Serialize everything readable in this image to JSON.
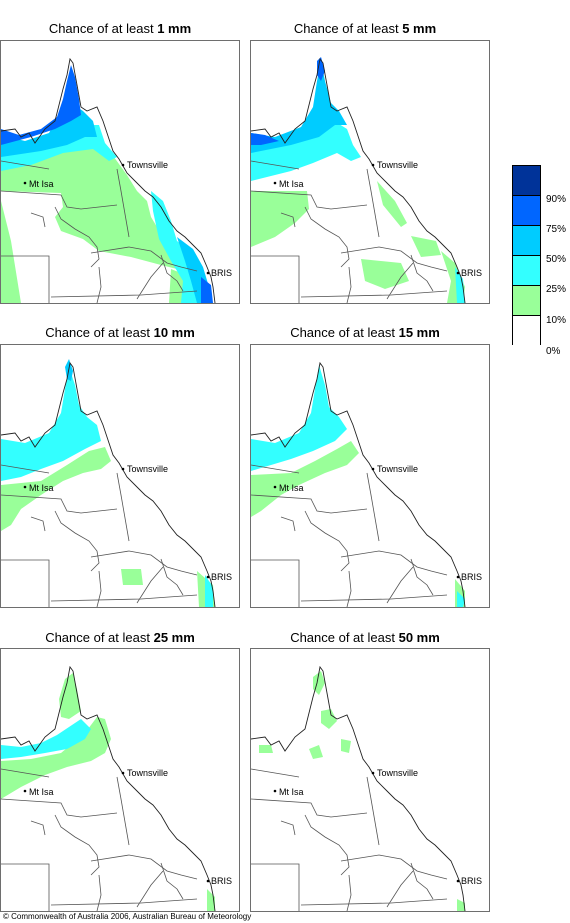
{
  "panels": [
    {
      "prefix": "Chance of at least ",
      "amount": "1 mm",
      "level": 1
    },
    {
      "prefix": "Chance of at least ",
      "amount": "5 mm",
      "level": 2
    },
    {
      "prefix": "Chance of at least ",
      "amount": "10 mm",
      "level": 3
    },
    {
      "prefix": "Chance of at least ",
      "amount": "15 mm",
      "level": 4
    },
    {
      "prefix": "Chance of at least ",
      "amount": "25 mm",
      "level": 5
    },
    {
      "prefix": "Chance of at least ",
      "amount": "50 mm",
      "level": 6
    }
  ],
  "places": {
    "townsville": "Townsville",
    "mt_isa": "Mt Isa",
    "brisbane": "BRIS"
  },
  "legend": {
    "labels": [
      "90%",
      "75%",
      "50%",
      "25%",
      "10%",
      "0%"
    ],
    "colors": [
      "#003399",
      "#0066ff",
      "#00ccff",
      "#33ffff",
      "#99ff99",
      "#ffffff"
    ]
  },
  "copyright": "© Commonwealth of Australia 2006, Australian Bureau of Meteorology"
}
